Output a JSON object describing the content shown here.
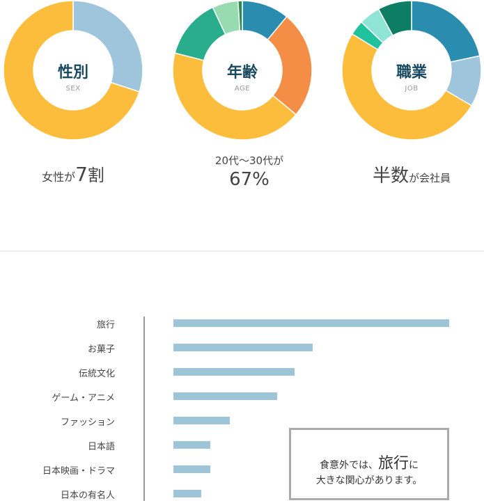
{
  "chart_data": [
    {
      "type": "pie",
      "title": "性別",
      "subtitle": "SEX",
      "categories": [
        "",
        ""
      ],
      "values": [
        30,
        70
      ],
      "colors": [
        "#9ec5dc",
        "#fbbd3b"
      ],
      "caption": {
        "prefix": "女性が",
        "highlight": "7",
        "suffix": "割"
      }
    },
    {
      "type": "pie",
      "title": "年齢",
      "subtitle": "AGE",
      "categories": [
        "",
        "",
        "",
        "",
        "",
        ""
      ],
      "values": [
        11,
        25,
        43,
        14,
        6,
        1
      ],
      "colors": [
        "#2a8db0",
        "#f48d46",
        "#fbbd3b",
        "#2aad8c",
        "#98dbb0",
        "#2b8a50"
      ],
      "caption": {
        "line1": "20代～30代が",
        "line2": "67%"
      }
    },
    {
      "type": "pie",
      "title": "職業",
      "subtitle": "JOB",
      "categories": [
        "",
        "",
        "",
        "",
        "",
        ""
      ],
      "values": [
        22,
        12,
        51,
        3.5,
        5,
        8
      ],
      "colors": [
        "#2a8db0",
        "#9ec5dc",
        "#fbbd3b",
        "#1fc29c",
        "#8fe4d6",
        "#0d7e64"
      ],
      "caption": {
        "highlight": "半数",
        "suffix": "が会社員"
      }
    },
    {
      "type": "bar",
      "orientation": "horizontal",
      "categories": [
        "旅行",
        "お菓子",
        "伝統文化",
        "ゲーム・アニメ",
        "ファッション",
        "日本語",
        "日本映画・ドラマ",
        "日本の有名人"
      ],
      "values": [
        100,
        50.5,
        44,
        37.5,
        20.5,
        13.5,
        13.5,
        10
      ],
      "bar_color": "#9ec4d7",
      "xlim": [
        0,
        100
      ]
    }
  ],
  "note": {
    "line1_pre": "食意外では、",
    "line1_big": "旅行",
    "line1_post": "に",
    "line2": "大きな関心があります。"
  }
}
